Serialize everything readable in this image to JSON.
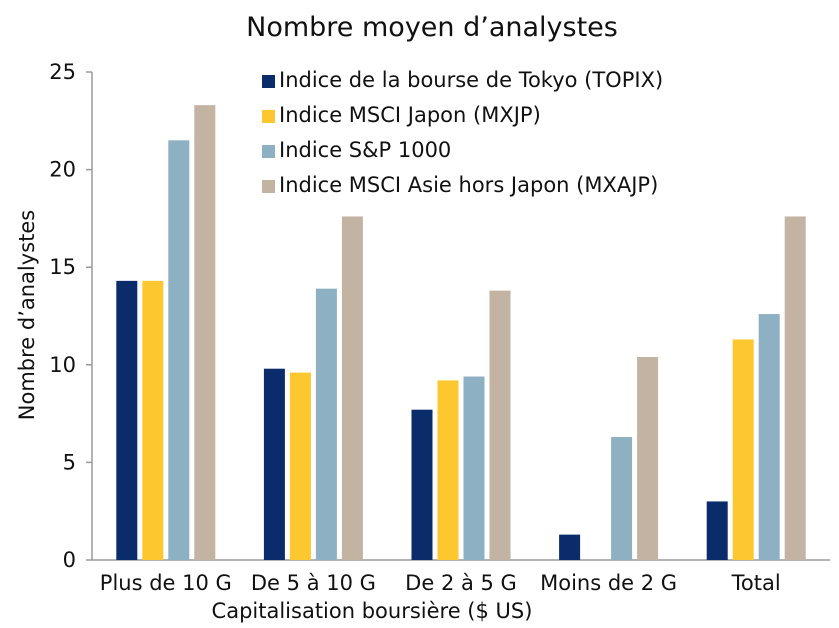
{
  "chart_data": {
    "type": "bar",
    "title": "Nombre moyen d’analystes",
    "xlabel": "Capitalisation boursière ($ US)",
    "ylabel": "Nombre d’analystes",
    "ylim": [
      0,
      25
    ],
    "yticks": [
      0,
      5,
      10,
      15,
      20,
      25
    ],
    "grid": false,
    "legend_position": "top-right",
    "categories": [
      "Plus de 10 G",
      "De 5 à 10 G",
      "De 2 à 5 G",
      "Moins de 2 G",
      "Total"
    ],
    "series": [
      {
        "name": "Indice de la bourse de Tokyo (TOPIX)",
        "color": "#0a2c6b",
        "values": [
          14.3,
          9.8,
          7.7,
          1.3,
          3.0
        ]
      },
      {
        "name": "Indice MSCI Japon (MXJP)",
        "color": "#fdc82f",
        "values": [
          14.3,
          9.6,
          9.2,
          0,
          11.3
        ]
      },
      {
        "name": "Indice S&P 1000",
        "color": "#8eb0c3",
        "values": [
          21.5,
          13.9,
          9.4,
          6.3,
          12.6
        ]
      },
      {
        "name": "Indice MSCI Asie hors Japon (MXAJP)",
        "color": "#c2b3a2",
        "values": [
          23.3,
          17.6,
          13.8,
          10.4,
          17.6
        ]
      }
    ]
  }
}
